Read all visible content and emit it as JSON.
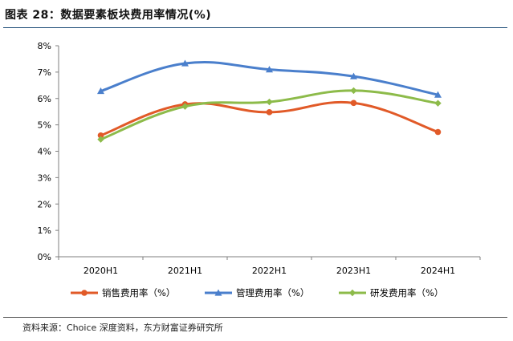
{
  "header": {
    "title": "图表 28：数据要素板块费用率情况(%)"
  },
  "footer": {
    "source": "资料来源：Choice 深度资料，东方财富证券研究所"
  },
  "chart_data": {
    "type": "line",
    "title": "图表 28：数据要素板块费用率情况(%)",
    "categories": [
      "2020H1",
      "2021H1",
      "2022H1",
      "2023H1",
      "2024H1"
    ],
    "ylim": [
      0,
      8
    ],
    "yticks": [
      0,
      1,
      2,
      3,
      4,
      5,
      6,
      7,
      8
    ],
    "yunit": "%",
    "grid": false,
    "legend_position": "bottom",
    "series": [
      {
        "name": "销售费用率（%）",
        "color": "#e15a28",
        "marker": "circle",
        "values": [
          4.6,
          5.78,
          5.48,
          5.83,
          4.73
        ]
      },
      {
        "name": "管理费用率（%）",
        "color": "#4a7fcc",
        "marker": "triangle",
        "values": [
          6.28,
          7.33,
          7.1,
          6.84,
          6.14
        ]
      },
      {
        "name": "研发费用率（%）",
        "color": "#8dbb4a",
        "marker": "diamond",
        "values": [
          4.45,
          5.7,
          5.87,
          6.3,
          5.82
        ]
      }
    ]
  }
}
